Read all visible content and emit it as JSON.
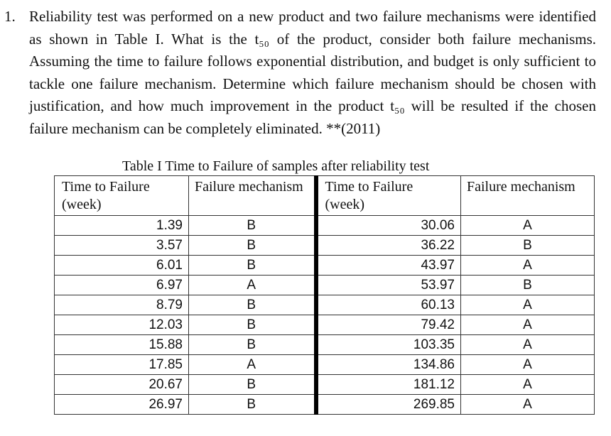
{
  "question": {
    "number": "1.",
    "text": "Reliability test was performed on a new product and two failure mechanisms were identified as shown in Table I.  What is the t₅₀ of the product, consider both failure mechanisms.  Assuming the time to failure follows exponential distribution, and budget is only sufficient to tackle one failure mechanism.  Determine which failure mechanism should be chosen with justification, and how much improvement in the product t₅₀ will be resulted if the chosen failure mechanism can be completely eliminated. **(2011)"
  },
  "table": {
    "caption": "Table I Time to Failure of samples after reliability test",
    "headers": {
      "time": "Time to Failure (week)",
      "mechanism": "Failure mechanism"
    },
    "rows": [
      {
        "t1": "1.39",
        "m1": "B",
        "t2": "30.06",
        "m2": "A"
      },
      {
        "t1": "3.57",
        "m1": "B",
        "t2": "36.22",
        "m2": "B"
      },
      {
        "t1": "6.01",
        "m1": "B",
        "t2": "43.97",
        "m2": "A"
      },
      {
        "t1": "6.97",
        "m1": "A",
        "t2": "53.97",
        "m2": "B"
      },
      {
        "t1": "8.79",
        "m1": "B",
        "t2": "60.13",
        "m2": "A"
      },
      {
        "t1": "12.03",
        "m1": "B",
        "t2": "79.42",
        "m2": "A"
      },
      {
        "t1": "15.88",
        "m1": "B",
        "t2": "103.35",
        "m2": "A"
      },
      {
        "t1": "17.85",
        "m1": "A",
        "t2": "134.86",
        "m2": "A"
      },
      {
        "t1": "20.67",
        "m1": "B",
        "t2": "181.12",
        "m2": "A"
      },
      {
        "t1": "26.97",
        "m1": "B",
        "t2": "269.85",
        "m2": "A"
      }
    ]
  }
}
